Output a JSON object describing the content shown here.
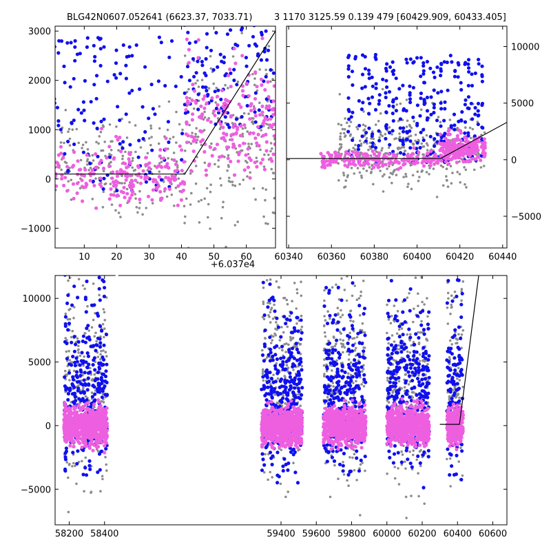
{
  "figure": {
    "title_left": "BLG42N0607.052641 (6623.37, 7033.71)",
    "title_right": "3 1170 3125.59 0.139 479 [60429.909, 60433.405]"
  },
  "colors": {
    "blue": "#1010ee",
    "gray": "#8c8c8c",
    "pink": "#ee5fe0",
    "model": "#000000"
  },
  "chart_data": [
    {
      "id": "top-left",
      "type": "scatter",
      "x_offset_label": "+6.037e4",
      "xlim": [
        1,
        69
      ],
      "ylim": [
        -1400,
        3100
      ],
      "xticks": [
        10,
        20,
        30,
        40,
        50,
        60
      ],
      "yticks": [
        -1000,
        0,
        1000,
        2000,
        3000
      ],
      "ytick_side": "left",
      "model_line": {
        "x": [
          1,
          41,
          69
        ],
        "y": [
          100,
          100,
          3000
        ]
      },
      "series": [
        {
          "color_key": "gray",
          "count": 420,
          "segments": [
            {
              "x": [
                1,
                41
              ],
              "y_center": 250,
              "y_spread": 450
            },
            {
              "x": [
                41,
                69
              ],
              "y_center": 900,
              "y_spread": 900
            }
          ]
        },
        {
          "color_key": "blue",
          "count": 260,
          "segments": [
            {
              "x": [
                1,
                41
              ],
              "y_center": 1300,
              "y_spread": 1000
            },
            {
              "x": [
                41,
                69
              ],
              "y_center": 2300,
              "y_spread": 800
            }
          ]
        },
        {
          "color_key": "pink",
          "count": 380,
          "segments": [
            {
              "x": [
                1,
                41
              ],
              "y_center": 50,
              "y_spread": 280
            },
            {
              "x": [
                41,
                69
              ],
              "y_center": 1100,
              "y_spread": 500
            }
          ]
        }
      ]
    },
    {
      "id": "top-right",
      "type": "scatter",
      "xlim": [
        60339,
        60442
      ],
      "ylim": [
        -7800,
        11800
      ],
      "xticks": [
        60340,
        60360,
        60380,
        60400,
        60420,
        60440
      ],
      "yticks": [
        -5000,
        0,
        5000,
        10000
      ],
      "ytick_side": "right",
      "model_line": {
        "x": [
          60339,
          60411,
          60442
        ],
        "y": [
          100,
          100,
          3300
        ]
      },
      "series": [
        {
          "color_key": "gray",
          "count": 380,
          "segments": [
            {
              "x": [
                60363,
                60432
              ],
              "y_center": 900,
              "y_spread": 1500
            }
          ]
        },
        {
          "color_key": "blue",
          "count": 300,
          "segments": [
            {
              "x": [
                60368,
                60432
              ],
              "y_center": 4500,
              "y_spread": 3000
            }
          ]
        },
        {
          "color_key": "pink",
          "count": 420,
          "segments": [
            {
              "x": [
                60355,
                60410
              ],
              "y_center": 0,
              "y_spread": 300
            },
            {
              "x": [
                60410,
                60432
              ],
              "y_center": 900,
              "y_spread": 500
            }
          ]
        }
      ]
    },
    {
      "id": "bottom",
      "type": "scatter",
      "xlim": [
        58120,
        60680
      ],
      "ylim": [
        -7800,
        11800
      ],
      "xticks": [
        58200,
        58400,
        59400,
        59600,
        59800,
        60000,
        60200,
        60400,
        60600
      ],
      "xtick_labels": [
        "58200",
        "58400",
        "59400",
        "59600",
        "59800",
        "60000",
        "60200",
        "60400",
        "60600"
      ],
      "yticks": [
        -5000,
        0,
        5000,
        10000
      ],
      "ytick_side": "left",
      "seasons": [
        {
          "x": [
            58170,
            58415
          ]
        },
        {
          "x": [
            59290,
            59520
          ]
        },
        {
          "x": [
            59640,
            59880
          ]
        },
        {
          "x": [
            60000,
            60240
          ]
        },
        {
          "x": [
            60340,
            60432
          ]
        }
      ],
      "model_line": {
        "x": [
          60300,
          60411,
          60520
        ],
        "y": [
          100,
          100,
          11800
        ]
      },
      "series": [
        {
          "color_key": "gray",
          "count_per_season": 260,
          "y_center": 3500,
          "y_spread": 5000
        },
        {
          "color_key": "blue",
          "count_per_season": 320,
          "y_center": 2500,
          "y_spread": 3500
        },
        {
          "color_key": "pink",
          "count_per_season": 700,
          "y_center": 0,
          "y_spread": 700
        }
      ]
    }
  ]
}
